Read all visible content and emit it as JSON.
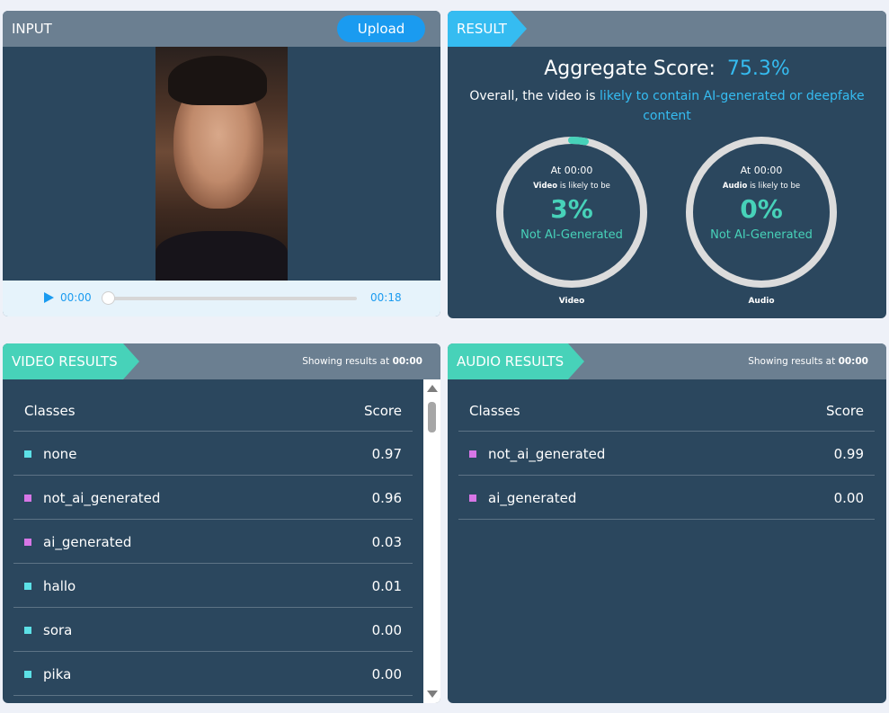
{
  "input": {
    "title": "INPUT",
    "upload_label": "Upload",
    "player": {
      "current_time": "00:00",
      "total_time": "00:18",
      "progress": 0
    }
  },
  "result": {
    "title": "RESULT",
    "aggregate_label": "Aggregate Score:",
    "aggregate_value": "75.3%",
    "overall_prefix": "Overall, the video is",
    "overall_verdict": "likely to contain AI-generated or deepfake content",
    "gauges": {
      "video": {
        "at": "At 00:00",
        "subject": "Video",
        "likely": "is likely to be",
        "percent": "3%",
        "percent_value": 3,
        "class_label": "Not AI-Generated",
        "caption": "Video"
      },
      "audio": {
        "at": "At 00:00",
        "subject": "Audio",
        "likely": "is likely to be",
        "percent": "0%",
        "percent_value": 0,
        "class_label": "Not AI-Generated",
        "caption": "Audio"
      }
    },
    "colors": {
      "accent": "#35bcf1",
      "gauge_fill": "#47d2b9",
      "gauge_track": "#dcdcdc"
    }
  },
  "video_results": {
    "title": "VIDEO RESULTS",
    "showing_prefix": "Showing results at",
    "showing_time": "00:00",
    "col_class": "Classes",
    "col_score": "Score",
    "rows": [
      {
        "cls": "none",
        "score": "0.97",
        "color": "#5ce0e6"
      },
      {
        "cls": "not_ai_generated",
        "score": "0.96",
        "color": "#d776e6"
      },
      {
        "cls": "ai_generated",
        "score": "0.03",
        "color": "#d776e6"
      },
      {
        "cls": "hallo",
        "score": "0.01",
        "color": "#5ce0e6"
      },
      {
        "cls": "sora",
        "score": "0.00",
        "color": "#5ce0e6"
      },
      {
        "cls": "pika",
        "score": "0.00",
        "color": "#5ce0e6"
      }
    ]
  },
  "audio_results": {
    "title": "AUDIO RESULTS",
    "showing_prefix": "Showing results at",
    "showing_time": "00:00",
    "col_class": "Classes",
    "col_score": "Score",
    "rows": [
      {
        "cls": "not_ai_generated",
        "score": "0.99",
        "color": "#d776e6"
      },
      {
        "cls": "ai_generated",
        "score": "0.00",
        "color": "#d776e6"
      }
    ]
  }
}
